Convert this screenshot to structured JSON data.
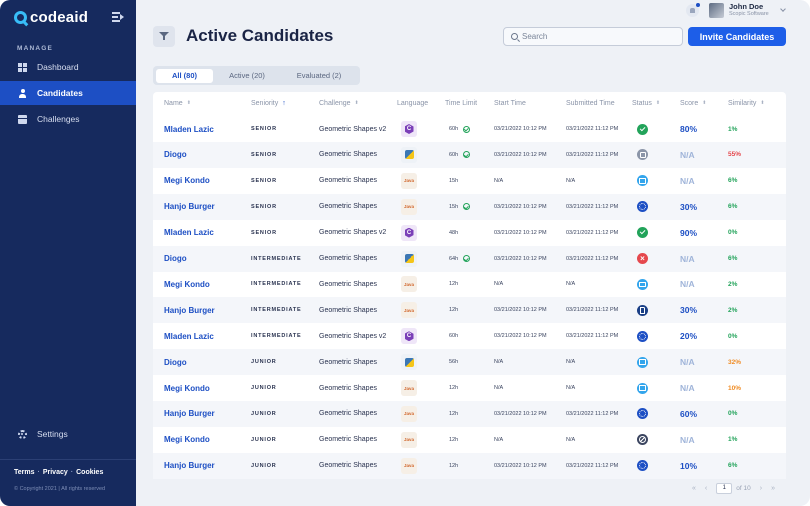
{
  "app": {
    "logo_text": "codeaid",
    "nav_section": "MANAGE",
    "nav": [
      {
        "label": "Dashboard",
        "icon": "dashboard-icon"
      },
      {
        "label": "Candidates",
        "icon": "user-icon"
      },
      {
        "label": "Challenges",
        "icon": "calendar-icon"
      }
    ],
    "settings_label": "Settings",
    "footer": {
      "terms": "Terms",
      "privacy": "Privacy",
      "cookies": "Cookies",
      "copyright": "© Copyright 2021  |  All rights reserved"
    }
  },
  "user": {
    "name": "John Doe",
    "company": "Scopic Software"
  },
  "header": {
    "title": "Active Candidates",
    "search_placeholder": "Search",
    "invite_label": "Invite Candidates"
  },
  "tabs": [
    {
      "label": "All (80)",
      "active": true
    },
    {
      "label": "Active (20)",
      "active": false
    },
    {
      "label": "Evaluated (2)",
      "active": false
    }
  ],
  "table": {
    "columns": [
      "Name",
      "Seniority",
      "Challenge",
      "Language",
      "Time Limit",
      "Start Time",
      "Submitted Time",
      "Status",
      "Score",
      "Similarity"
    ],
    "rows": [
      {
        "name": "Mladen Lazic",
        "seniority": "SENIOR",
        "challenge": "Geometric Shapes v2",
        "language": "csharp",
        "time": "60h",
        "timer_done": true,
        "start": "03/21/2022 10:12 PM",
        "submitted": "03/21/2022 11:12 PM",
        "status": "check",
        "score": "80%",
        "similarity": "1%"
      },
      {
        "name": "Diogo",
        "seniority": "SENIOR",
        "challenge": "Geometric Shapes",
        "language": "python",
        "time": "60h",
        "timer_done": true,
        "start": "03/21/2022 10:12 PM",
        "submitted": "03/21/2022 11:12 PM",
        "status": "edit",
        "score": "N/A",
        "similarity": "55%"
      },
      {
        "name": "Megi Kondo",
        "seniority": "SENIOR",
        "challenge": "Geometric Shapes",
        "language": "java",
        "time": "15h",
        "timer_done": false,
        "start": "N/A",
        "submitted": "N/A",
        "status": "mail",
        "score": "N/A",
        "similarity": "6%"
      },
      {
        "name": "Hanjo Burger",
        "seniority": "SENIOR",
        "challenge": "Geometric Shapes",
        "language": "java",
        "time": "15h",
        "timer_done": true,
        "start": "03/21/2022 10:12 PM",
        "submitted": "03/21/2022 11:12 PM",
        "status": "progress",
        "score": "30%",
        "similarity": "6%"
      },
      {
        "name": "Mladen Lazic",
        "seniority": "SENIOR",
        "challenge": "Geometric Shapes v2",
        "language": "csharp",
        "time": "48h",
        "timer_done": false,
        "start": "03/21/2022 10:12 PM",
        "submitted": "03/21/2022 11:12 PM",
        "status": "check",
        "score": "90%",
        "similarity": "0%"
      },
      {
        "name": "Diogo",
        "seniority": "INTERMEDIATE",
        "challenge": "Geometric Shapes",
        "language": "python",
        "time": "64h",
        "timer_done": true,
        "start": "03/21/2022 10:12 PM",
        "submitted": "03/21/2022 11:12 PM",
        "status": "fail",
        "score": "N/A",
        "similarity": "6%"
      },
      {
        "name": "Megi Kondo",
        "seniority": "INTERMEDIATE",
        "challenge": "Geometric Shapes",
        "language": "java",
        "time": "12h",
        "timer_done": false,
        "start": "N/A",
        "submitted": "N/A",
        "status": "mail",
        "score": "N/A",
        "similarity": "2%"
      },
      {
        "name": "Hanjo Burger",
        "seniority": "INTERMEDIATE",
        "challenge": "Geometric Shapes",
        "language": "java",
        "time": "12h",
        "timer_done": false,
        "start": "03/21/2022 10:12 PM",
        "submitted": "03/21/2022 11:12 PM",
        "status": "doc",
        "score": "30%",
        "similarity": "2%"
      },
      {
        "name": "Mladen Lazic",
        "seniority": "INTERMEDIATE",
        "challenge": "Geometric Shapes v2",
        "language": "csharp",
        "time": "60h",
        "timer_done": false,
        "start": "03/21/2022 10:12 PM",
        "submitted": "03/21/2022 11:12 PM",
        "status": "progress",
        "score": "20%",
        "similarity": "0%"
      },
      {
        "name": "Diogo",
        "seniority": "JUNIOR",
        "challenge": "Geometric Shapes",
        "language": "python",
        "time": "56h",
        "timer_done": false,
        "start": "N/A",
        "submitted": "N/A",
        "status": "mail",
        "score": "N/A",
        "similarity": "32%"
      },
      {
        "name": "Megi Kondo",
        "seniority": "JUNIOR",
        "challenge": "Geometric Shapes",
        "language": "java",
        "time": "12h",
        "timer_done": false,
        "start": "N/A",
        "submitted": "N/A",
        "status": "mail",
        "score": "N/A",
        "similarity": "10%"
      },
      {
        "name": "Hanjo Burger",
        "seniority": "JUNIOR",
        "challenge": "Geometric Shapes",
        "language": "java",
        "time": "12h",
        "timer_done": false,
        "start": "03/21/2022 10:12 PM",
        "submitted": "03/21/2022 11:12 PM",
        "status": "progress",
        "score": "60%",
        "similarity": "0%"
      },
      {
        "name": "Megi Kondo",
        "seniority": "JUNIOR",
        "challenge": "Geometric Shapes",
        "language": "java",
        "time": "12h",
        "timer_done": false,
        "start": "N/A",
        "submitted": "N/A",
        "status": "blocked",
        "score": "N/A",
        "similarity": "1%"
      },
      {
        "name": "Hanjo Burger",
        "seniority": "JUNIOR",
        "challenge": "Geometric Shapes",
        "language": "java",
        "time": "12h",
        "timer_done": false,
        "start": "03/21/2022 10:12 PM",
        "submitted": "03/21/2022 11:12 PM",
        "status": "progress",
        "score": "10%",
        "similarity": "6%"
      }
    ]
  },
  "pagination": {
    "current": "1",
    "of_label": "of 10"
  },
  "colors": {
    "sidebar": "#162a5e",
    "accent": "#1d4fc4",
    "score_good": "#1d4fc4",
    "na": "#9fb4d9",
    "sim_low": "#22a35a",
    "sim_mid": "#f08c24",
    "sim_high": "#e5484d"
  }
}
